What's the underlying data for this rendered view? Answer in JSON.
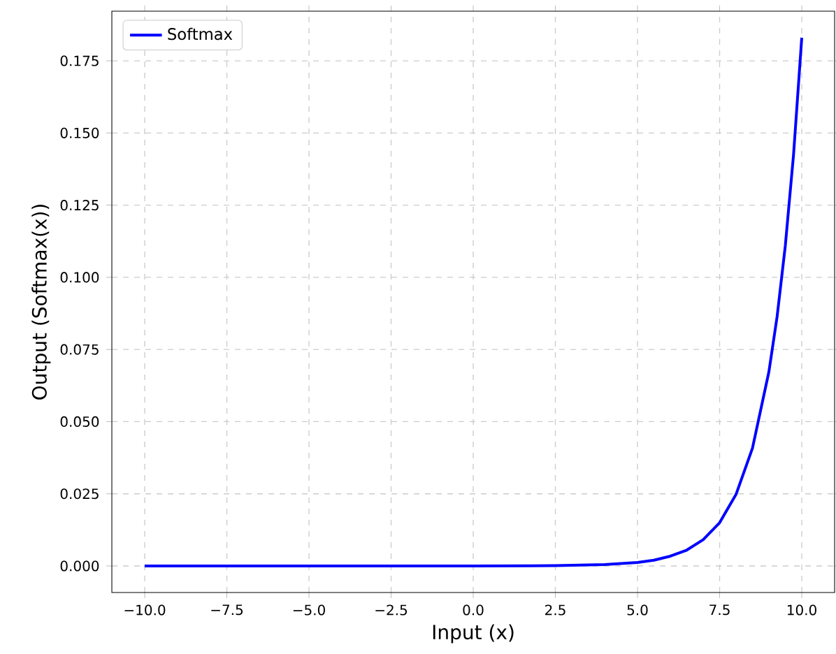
{
  "chart_data": {
    "type": "line",
    "xlabel": "Input (x)",
    "ylabel": "Output (Softmax(x))",
    "x": [
      -10,
      -7.5,
      -5,
      -2.5,
      0,
      2.5,
      4,
      5,
      5.5,
      6,
      6.5,
      7,
      7.5,
      8,
      8.5,
      9,
      9.25,
      9.5,
      9.75,
      10
    ],
    "series": [
      {
        "name": "Softmax",
        "color": "#0000ff",
        "values": [
          0,
          0,
          0,
          0,
          0,
          0.0001,
          0.0005,
          0.0012,
          0.002,
          0.0034,
          0.0055,
          0.0091,
          0.015,
          0.0248,
          0.0408,
          0.0673,
          0.0864,
          0.111,
          0.1425,
          0.183
        ]
      }
    ],
    "xlim": [
      -11,
      11
    ],
    "ylim": [
      -0.0092,
      0.1922
    ],
    "xticks": [
      {
        "value": -10,
        "label": "−10.0"
      },
      {
        "value": -7.5,
        "label": "−7.5"
      },
      {
        "value": -5,
        "label": "−5.0"
      },
      {
        "value": -2.5,
        "label": "−2.5"
      },
      {
        "value": 0,
        "label": "0.0"
      },
      {
        "value": 2.5,
        "label": "2.5"
      },
      {
        "value": 5,
        "label": "5.0"
      },
      {
        "value": 7.5,
        "label": "7.5"
      },
      {
        "value": 10,
        "label": "10.0"
      }
    ],
    "yticks": [
      {
        "value": 0,
        "label": "0.000"
      },
      {
        "value": 0.025,
        "label": "0.025"
      },
      {
        "value": 0.05,
        "label": "0.050"
      },
      {
        "value": 0.075,
        "label": "0.075"
      },
      {
        "value": 0.1,
        "label": "0.100"
      },
      {
        "value": 0.125,
        "label": "0.125"
      },
      {
        "value": 0.15,
        "label": "0.150"
      },
      {
        "value": 0.175,
        "label": "0.175"
      }
    ],
    "grid": true,
    "legend": "top left",
    "line_style": "solid"
  }
}
